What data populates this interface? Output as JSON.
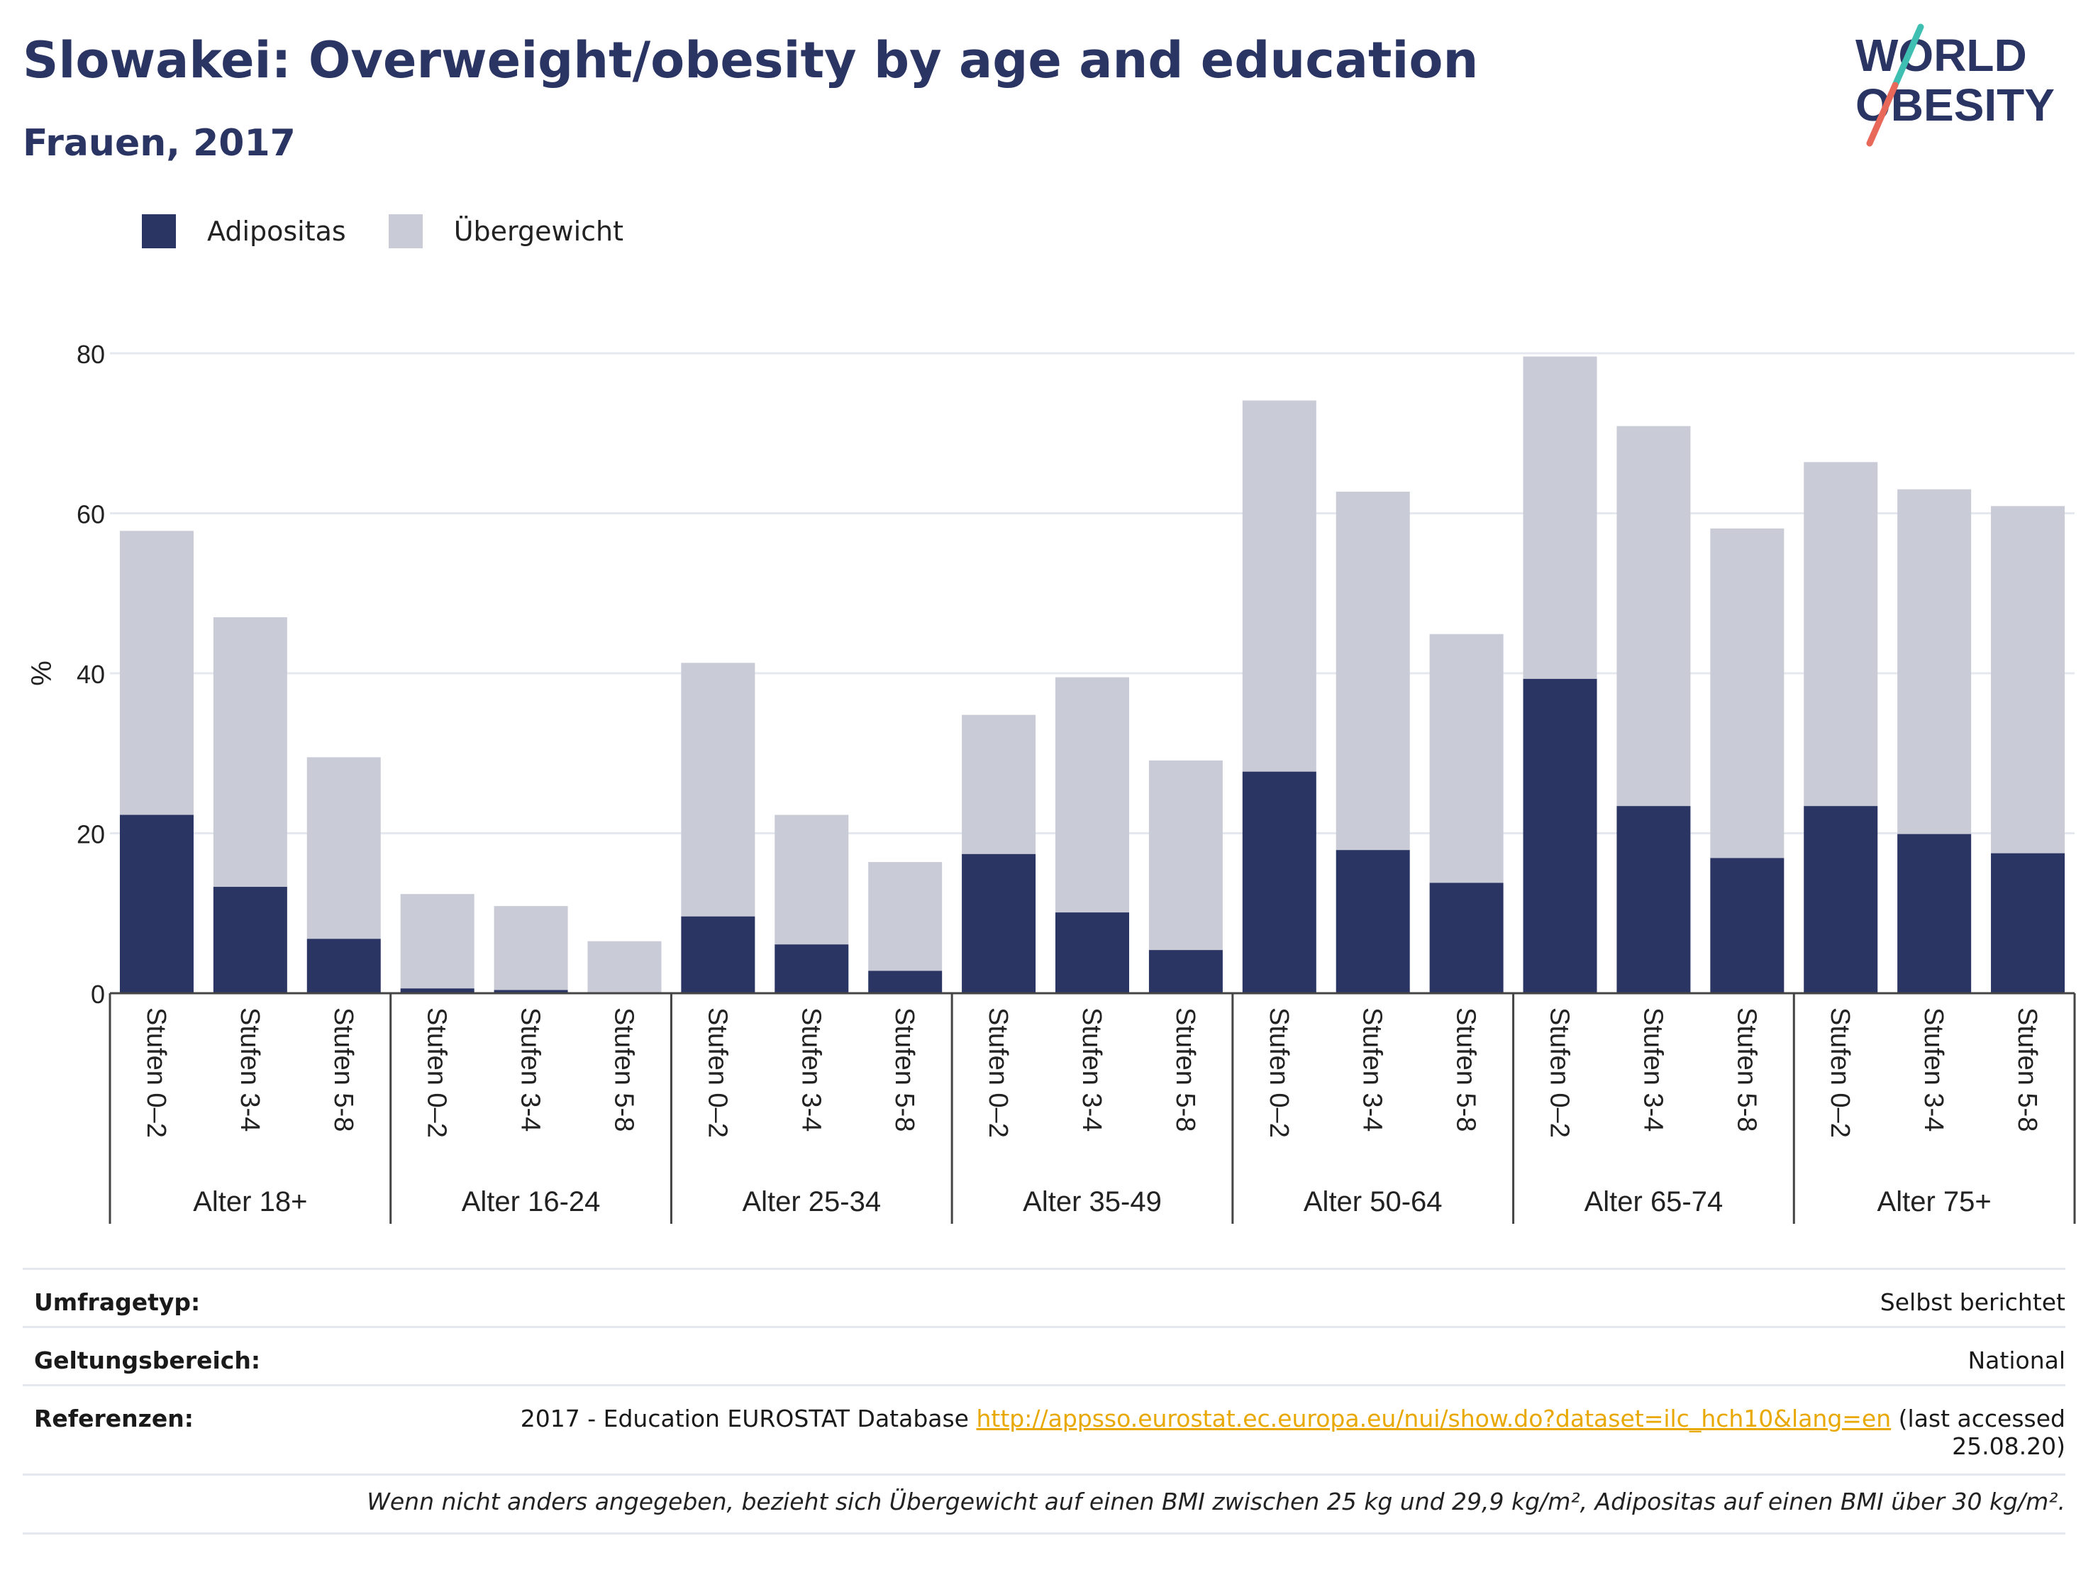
{
  "header": {
    "title": "Slowakei: Overweight/obesity by age and education",
    "subtitle": "Frauen, 2017",
    "logo_line1": "WORLD",
    "logo_line2": "OBESITY"
  },
  "legend": [
    {
      "label": "Adipositas",
      "color": "#2b3563"
    },
    {
      "label": "Übergewicht",
      "color": "#c9cbd6"
    }
  ],
  "chart_data": {
    "type": "bar",
    "stacked": true,
    "ylabel": "%",
    "ylim": [
      0,
      85
    ],
    "yticks": [
      0,
      20,
      40,
      60,
      80
    ],
    "grid": true,
    "legend_position": "top-left",
    "groups": [
      {
        "label": "Alter 18+",
        "categories": [
          "Stufen 0–2",
          "Stufen 3-4",
          "Stufen 5-8"
        ]
      },
      {
        "label": "Alter 16-24",
        "categories": [
          "Stufen 0–2",
          "Stufen 3-4",
          "Stufen 5-8"
        ]
      },
      {
        "label": "Alter 25-34",
        "categories": [
          "Stufen 0–2",
          "Stufen 3-4",
          "Stufen 5-8"
        ]
      },
      {
        "label": "Alter 35-49",
        "categories": [
          "Stufen 0–2",
          "Stufen 3-4",
          "Stufen 5-8"
        ]
      },
      {
        "label": "Alter 50-64",
        "categories": [
          "Stufen 0–2",
          "Stufen 3-4",
          "Stufen 5-8"
        ]
      },
      {
        "label": "Alter 65-74",
        "categories": [
          "Stufen 0–2",
          "Stufen 3-4",
          "Stufen 5-8"
        ]
      },
      {
        "label": "Alter 75+",
        "categories": [
          "Stufen 0–2",
          "Stufen 3-4",
          "Stufen 5-8"
        ]
      }
    ],
    "series": [
      {
        "name": "Adipositas",
        "color": "#2b3563",
        "values": [
          22.3,
          13.3,
          6.8,
          0.6,
          0.4,
          0.0,
          9.6,
          6.1,
          2.8,
          17.4,
          10.1,
          5.4,
          27.7,
          17.9,
          13.8,
          39.3,
          23.4,
          16.9,
          23.4,
          19.9,
          17.5
        ]
      },
      {
        "name": "Übergewicht",
        "color": "#c9cbd6",
        "values": [
          35.5,
          33.7,
          22.7,
          11.8,
          10.5,
          6.5,
          31.7,
          16.2,
          13.6,
          17.4,
          29.4,
          23.7,
          46.4,
          44.8,
          31.1,
          40.3,
          47.5,
          41.2,
          43.0,
          43.1,
          43.4
        ]
      }
    ]
  },
  "meta": {
    "survey_label": "Umfragetyp:",
    "survey_value": "Selbst berichtet",
    "scope_label": "Geltungsbereich:",
    "scope_value": "National",
    "refs_label": "Referenzen:",
    "refs_text": "2017 - Education EUROSTAT Database",
    "refs_link": "http://appsso.eurostat.ec.europa.eu/nui/show.do?dataset=ilc_hch10&lang=en",
    "refs_tail": "(last accessed",
    "refs_date": "25.08.20)",
    "footnote": "Wenn nicht anders angegeben, bezieht sich Übergewicht auf einen BMI zwischen 25 kg und 29,9 kg/m², Adipositas auf einen BMI über 30 kg/m²."
  }
}
